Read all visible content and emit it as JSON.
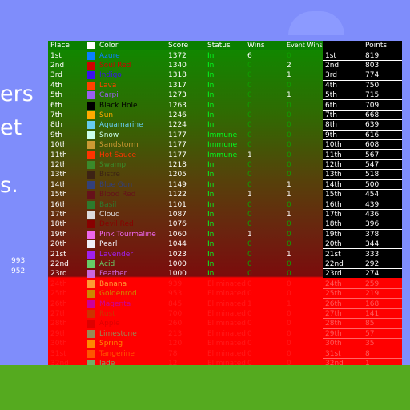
{
  "side": {
    "lines": [
      "ers",
      "et",
      "s."
    ],
    "numbers": [
      "993",
      "952"
    ]
  },
  "header": {
    "place": "Place",
    "color": "Color",
    "score": "Score",
    "status": "Status",
    "wins": "Wins",
    "event_wins": "Event Wins",
    "points": "Points"
  },
  "rows": [
    {
      "place": "1st",
      "color": "Azure",
      "sw": "#0a7fff",
      "score": "1372",
      "status": "In",
      "wins": "6",
      "ev": "0"
    },
    {
      "place": "2nd",
      "color": "Soul Red",
      "sw": "#d00000",
      "score": "1340",
      "status": "In",
      "wins": "0",
      "ev": "2"
    },
    {
      "place": "3rd",
      "color": "Indigo",
      "sw": "#3a10f0",
      "score": "1318",
      "status": "In",
      "wins": "0",
      "ev": "1"
    },
    {
      "place": "4th",
      "color": "Lava",
      "sw": "#ff4000",
      "score": "1317",
      "status": "In",
      "wins": "0",
      "ev": "0"
    },
    {
      "place": "5th",
      "color": "Carpi",
      "sw": "#9a5ff0",
      "score": "1273",
      "status": "In",
      "wins": "0",
      "ev": "1"
    },
    {
      "place": "6th",
      "color": "Black Hole",
      "sw": "#000000",
      "score": "1263",
      "status": "In",
      "wins": "0",
      "ev": "0"
    },
    {
      "place": "7th",
      "color": "Sun",
      "sw": "#ffaa00",
      "score": "1246",
      "status": "In",
      "wins": "0",
      "ev": "0"
    },
    {
      "place": "8th",
      "color": "Aquamarine",
      "sw": "#66ccee",
      "score": "1224",
      "status": "In",
      "wins": "0",
      "ev": "0"
    },
    {
      "place": "9th",
      "color": "Snow",
      "sw": "#ccffee",
      "score": "1177",
      "status": "Immune",
      "wins": "0",
      "ev": "0"
    },
    {
      "place": "10th",
      "color": "Sandstorm",
      "sw": "#cc9933",
      "score": "1177",
      "status": "Immune",
      "wins": "0",
      "ev": "0"
    },
    {
      "place": "11th",
      "color": "Hot Sauce",
      "sw": "#ff3300",
      "score": "1177",
      "status": "Immune",
      "wins": "1",
      "ev": "0"
    },
    {
      "place": "12th",
      "color": "Swamp",
      "sw": "#3a8a2a",
      "score": "1218",
      "status": "In",
      "wins": "0",
      "ev": "0"
    },
    {
      "place": "13th",
      "color": "Bistre",
      "sw": "#3d2314",
      "score": "1205",
      "status": "In",
      "wins": "0",
      "ev": "0"
    },
    {
      "place": "14th",
      "color": "Blue Gun",
      "sw": "#33407a",
      "score": "1149",
      "status": "In",
      "wins": "0",
      "ev": "1"
    },
    {
      "place": "15th",
      "color": "Blood Red",
      "sw": "#66111a",
      "score": "1122",
      "status": "In",
      "wins": "1",
      "ev": "1"
    },
    {
      "place": "16th",
      "color": "Basil",
      "sw": "#2d7a2d",
      "score": "1101",
      "status": "In",
      "wins": "0",
      "ev": "0"
    },
    {
      "place": "17th",
      "color": "Cloud",
      "sw": "#dddddd",
      "score": "1087",
      "status": "In",
      "wins": "0",
      "ev": "1"
    },
    {
      "place": "18th",
      "color": "Devil Red",
      "sw": "#880000",
      "score": "1076",
      "status": "In",
      "wins": "0",
      "ev": "0"
    },
    {
      "place": "19th",
      "color": "Pink Tourmaline",
      "sw": "#ee66ee",
      "score": "1060",
      "status": "In",
      "wins": "1",
      "ev": "0"
    },
    {
      "place": "20th",
      "color": "Pearl",
      "sw": "#f0f0f8",
      "score": "1044",
      "status": "In",
      "wins": "0",
      "ev": "0"
    },
    {
      "place": "21st",
      "color": "Lavender",
      "sw": "#a020f0",
      "score": "1023",
      "status": "In",
      "wins": "0",
      "ev": "1"
    },
    {
      "place": "22nd",
      "color": "Acid",
      "sw": "#66cc66",
      "score": "1000",
      "status": "In",
      "wins": "0",
      "ev": "0"
    },
    {
      "place": "23rd",
      "color": "Feather",
      "sw": "#cc66dd",
      "score": "1000",
      "status": "In",
      "wins": "0",
      "ev": "0"
    },
    {
      "place": "24th",
      "color": "Banana",
      "sw": "#ff9933",
      "score": "939",
      "status": "Eliminated",
      "wins": "0",
      "ev": "0"
    },
    {
      "place": "25th",
      "color": "Goldenrod",
      "sw": "#cc8800",
      "score": "953",
      "status": "Eliminated",
      "wins": "0",
      "ev": "0"
    },
    {
      "place": "26th",
      "color": "Magenta",
      "sw": "#cc0099",
      "score": "845",
      "status": "Eliminated",
      "wins": "1",
      "ev": "1"
    },
    {
      "place": "27th",
      "color": "Rust",
      "sw": "#cc3300",
      "score": "700",
      "status": "Eliminated",
      "wins": "0",
      "ev": "0"
    },
    {
      "place": "28th",
      "color": "Apple",
      "sw": "#dd0000",
      "score": "260",
      "status": "Eliminated",
      "wins": "0",
      "ev": "0"
    },
    {
      "place": "29th",
      "color": "Limestone",
      "sw": "#998855",
      "score": "213",
      "status": "Eliminated",
      "wins": "0",
      "ev": "0"
    },
    {
      "place": "30th",
      "color": "Spring",
      "sw": "#ff8800",
      "score": "120",
      "status": "Eliminated",
      "wins": "0",
      "ev": "0"
    },
    {
      "place": "31st",
      "color": "Tangerine",
      "sw": "#ff5500",
      "score": "78",
      "status": "Eliminated",
      "wins": "0",
      "ev": "0"
    },
    {
      "place": "32nd",
      "color": "Jade",
      "sw": "#77aa66",
      "score": "12",
      "status": "Eliminated",
      "wins": "0",
      "ev": "0"
    }
  ],
  "points": [
    {
      "place": "1st",
      "value": "819"
    },
    {
      "place": "2nd",
      "value": "803"
    },
    {
      "place": "3rd",
      "value": "774"
    },
    {
      "place": "4th",
      "value": "750"
    },
    {
      "place": "5th",
      "value": "715"
    },
    {
      "place": "6th",
      "value": "709"
    },
    {
      "place": "7th",
      "value": "668"
    },
    {
      "place": "8th",
      "value": "639"
    },
    {
      "place": "9th",
      "value": "616"
    },
    {
      "place": "10th",
      "value": "608"
    },
    {
      "place": "11th",
      "value": "567"
    },
    {
      "place": "12th",
      "value": "547"
    },
    {
      "place": "13th",
      "value": "518"
    },
    {
      "place": "14th",
      "value": "500"
    },
    {
      "place": "15th",
      "value": "454"
    },
    {
      "place": "16th",
      "value": "439"
    },
    {
      "place": "17th",
      "value": "436"
    },
    {
      "place": "18th",
      "value": "396"
    },
    {
      "place": "19th",
      "value": "378"
    },
    {
      "place": "20th",
      "value": "344"
    },
    {
      "place": "21st",
      "value": "333"
    },
    {
      "place": "22nd",
      "value": "292"
    },
    {
      "place": "23rd",
      "value": "274"
    },
    {
      "place": "24th",
      "value": "259"
    },
    {
      "place": "25th",
      "value": "219"
    },
    {
      "place": "26th",
      "value": "168"
    },
    {
      "place": "27th",
      "value": "141"
    },
    {
      "place": "28th",
      "value": "85"
    },
    {
      "place": "29th",
      "value": "57"
    },
    {
      "place": "30th",
      "value": "35"
    },
    {
      "place": "31st",
      "value": "8"
    },
    {
      "place": "32nd",
      "value": "1"
    }
  ],
  "colors": {
    "sky": "#7f8dfb",
    "grass": "#55aa1f",
    "eliminated_bg": "#ff0000",
    "text_in": "#00ff22",
    "text_immune": "#00ff22",
    "text_eliminated": "#ff1a1a",
    "wins_zero": "#0fa000",
    "points_text": "#ffffff"
  }
}
